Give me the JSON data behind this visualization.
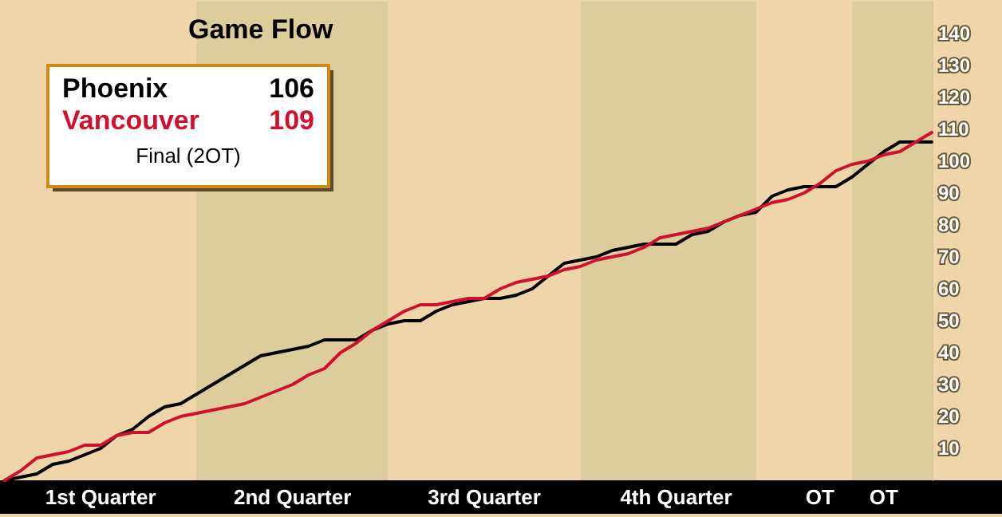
{
  "chart_data": {
    "type": "line",
    "title": "Game Flow",
    "categories": [
      null,
      null,
      null,
      null,
      null,
      null,
      "1st Quarter",
      null,
      null,
      null,
      null,
      null,
      null,
      null,
      null,
      null,
      null,
      null,
      "2nd Quarter",
      null,
      null,
      null,
      null,
      null,
      null,
      null,
      null,
      null,
      null,
      null,
      "3rd Quarter",
      null,
      null,
      null,
      null,
      null,
      null,
      null,
      null,
      null,
      null,
      null,
      "4th Quarter",
      null,
      null,
      null,
      null,
      null,
      null,
      null,
      null,
      "OT",
      null,
      null,
      null,
      "OT",
      null,
      null,
      null
    ],
    "ylim": [
      0,
      150
    ],
    "yticks": [
      10,
      20,
      30,
      40,
      50,
      60,
      70,
      80,
      90,
      100,
      110,
      120,
      130,
      140
    ],
    "series": [
      {
        "name": "Phoenix",
        "color": "#000000",
        "values": [
          0,
          1,
          2,
          5,
          6,
          8,
          10,
          14,
          16,
          20,
          23,
          24,
          27,
          30,
          33,
          36,
          39,
          40,
          41,
          42,
          44,
          44,
          44,
          47,
          49,
          50,
          50,
          53,
          55,
          56,
          57,
          57,
          58,
          60,
          64,
          68,
          69,
          70,
          72,
          73,
          74,
          74,
          74,
          77,
          78,
          81,
          83,
          84,
          89,
          91,
          92,
          92,
          92,
          95,
          99,
          103,
          106,
          106,
          106
        ]
      },
      {
        "name": "Vancouver",
        "color": "#d0102c",
        "values": [
          0,
          3,
          7,
          8,
          9,
          11,
          11,
          14,
          15,
          15,
          18,
          20,
          21,
          22,
          23,
          24,
          26,
          28,
          30,
          33,
          35,
          40,
          43,
          47,
          50,
          53,
          55,
          55,
          56,
          57,
          57,
          60,
          62,
          63,
          64,
          66,
          67,
          69,
          70,
          71,
          73,
          76,
          77,
          78,
          79,
          81,
          83,
          85,
          87,
          88,
          90,
          93,
          97,
          99,
          100,
          102,
          103,
          106,
          109
        ]
      }
    ],
    "annotations": [
      "106",
      "109",
      "Final (2OT)"
    ],
    "marker": "none",
    "line_style": "solid",
    "grid": false
  }
}
